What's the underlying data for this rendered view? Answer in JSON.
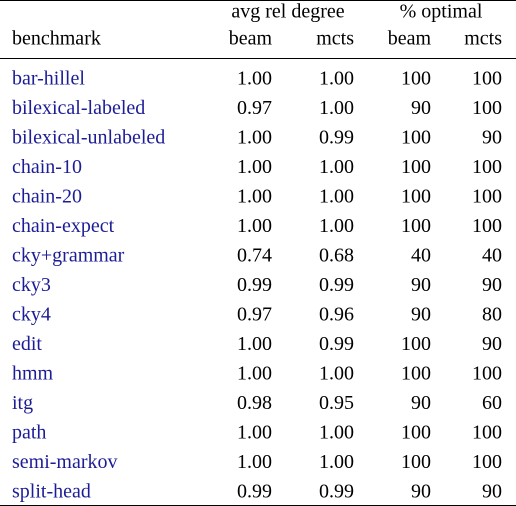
{
  "table": {
    "group_headers": [
      "avg rel degree",
      "% optimal"
    ],
    "columns": [
      "benchmark",
      "beam",
      "mcts",
      "beam",
      "mcts"
    ],
    "rows": [
      [
        "bar-hillel",
        "1.00",
        "1.00",
        "100",
        "100"
      ],
      [
        "bilexical-labeled",
        "0.97",
        "1.00",
        "90",
        "100"
      ],
      [
        "bilexical-unlabeled",
        "1.00",
        "0.99",
        "100",
        "90"
      ],
      [
        "chain-10",
        "1.00",
        "1.00",
        "100",
        "100"
      ],
      [
        "chain-20",
        "1.00",
        "1.00",
        "100",
        "100"
      ],
      [
        "chain-expect",
        "1.00",
        "1.00",
        "100",
        "100"
      ],
      [
        "cky+grammar",
        "0.74",
        "0.68",
        "40",
        "40"
      ],
      [
        "cky3",
        "0.99",
        "0.99",
        "90",
        "90"
      ],
      [
        "cky4",
        "0.97",
        "0.96",
        "90",
        "80"
      ],
      [
        "edit",
        "1.00",
        "0.99",
        "100",
        "90"
      ],
      [
        "hmm",
        "1.00",
        "1.00",
        "100",
        "100"
      ],
      [
        "itg",
        "0.98",
        "0.95",
        "90",
        "60"
      ],
      [
        "path",
        "1.00",
        "1.00",
        "100",
        "100"
      ],
      [
        "semi-markov",
        "1.00",
        "1.00",
        "100",
        "100"
      ],
      [
        "split-head",
        "0.99",
        "0.99",
        "90",
        "90"
      ]
    ]
  }
}
